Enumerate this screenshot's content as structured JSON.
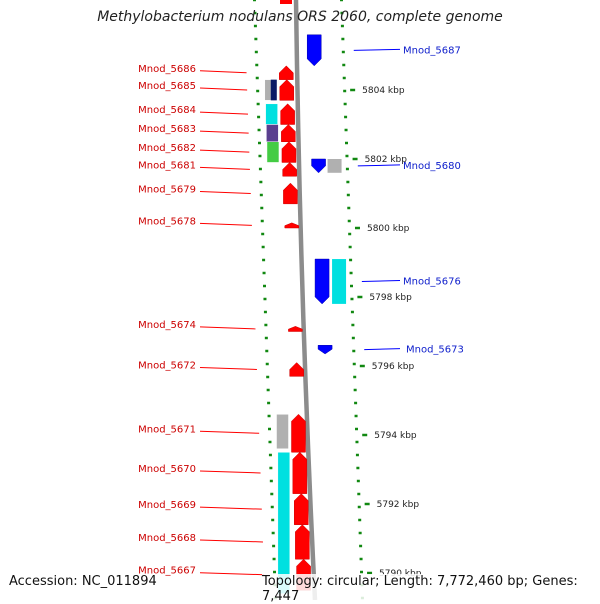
{
  "title": "Methylobacterium nodulans ORS 2060, complete genome",
  "footer": {
    "accession": "Accession: NC_011894",
    "topology": "Topology: circular; Length: 7,772,460 bp; Genes: 7,447"
  },
  "colors": {
    "forward_gene": "#ff0000",
    "reverse_gene": "#0000ff",
    "backbone": "#8c8c8c",
    "ticks": "#118811",
    "cyan": "#00e0e0",
    "purple": "#5a3f8f",
    "green": "#44cc44",
    "grey": "#b0b0b0",
    "navy": "#0a1a66"
  },
  "scale": {
    "unit": "kbp",
    "ticks": [
      {
        "label": "5804 kbp",
        "kbp": 5804
      },
      {
        "label": "5802 kbp",
        "kbp": 5802
      },
      {
        "label": "5800 kbp",
        "kbp": 5800
      },
      {
        "label": "5798 kbp",
        "kbp": 5798
      },
      {
        "label": "5796 kbp",
        "kbp": 5796
      },
      {
        "label": "5794 kbp",
        "kbp": 5794
      },
      {
        "label": "5792 kbp",
        "kbp": 5792
      },
      {
        "label": "5790 kbp",
        "kbp": 5790
      }
    ]
  },
  "genes_forward": [
    {
      "id": "Mnod_5686",
      "start": 5804.7,
      "end": 5804.3
    },
    {
      "id": "Mnod_5685",
      "start": 5804.3,
      "end": 5803.7
    },
    {
      "id": "Mnod_5684",
      "start": 5803.6,
      "end": 5803.0
    },
    {
      "id": "Mnod_5683",
      "start": 5803.0,
      "end": 5802.5
    },
    {
      "id": "Mnod_5682",
      "start": 5802.5,
      "end": 5801.9
    },
    {
      "id": "Mnod_5681",
      "start": 5801.9,
      "end": 5801.5
    },
    {
      "id": "Mnod_5679",
      "start": 5801.3,
      "end": 5800.7
    },
    {
      "id": "Mnod_5678",
      "start": 5800.15,
      "end": 5800.0
    },
    {
      "id": "Mnod_5674",
      "start": 5797.15,
      "end": 5797.0
    },
    {
      "id": "Mnod_5672",
      "start": 5796.1,
      "end": 5795.7
    },
    {
      "id": "Mnod_5671",
      "start": 5794.6,
      "end": 5793.5
    },
    {
      "id": "Mnod_5670",
      "start": 5793.5,
      "end": 5792.3
    },
    {
      "id": "Mnod_5669",
      "start": 5792.3,
      "end": 5791.4
    },
    {
      "id": "Mnod_5668",
      "start": 5791.4,
      "end": 5790.4
    },
    {
      "id": "Mnod_5667",
      "start": 5790.4,
      "end": 5789.5
    }
  ],
  "genes_reverse": [
    {
      "id": "Mnod_5687",
      "start": 5805.6,
      "end": 5804.7
    },
    {
      "id": "Mnod_5680",
      "start": 5802.0,
      "end": 5801.6
    },
    {
      "id": "Mnod_5676",
      "start": 5799.1,
      "end": 5797.8
    },
    {
      "id": "Mnod_5673",
      "start": 5796.6,
      "end": 5796.35
    }
  ]
}
